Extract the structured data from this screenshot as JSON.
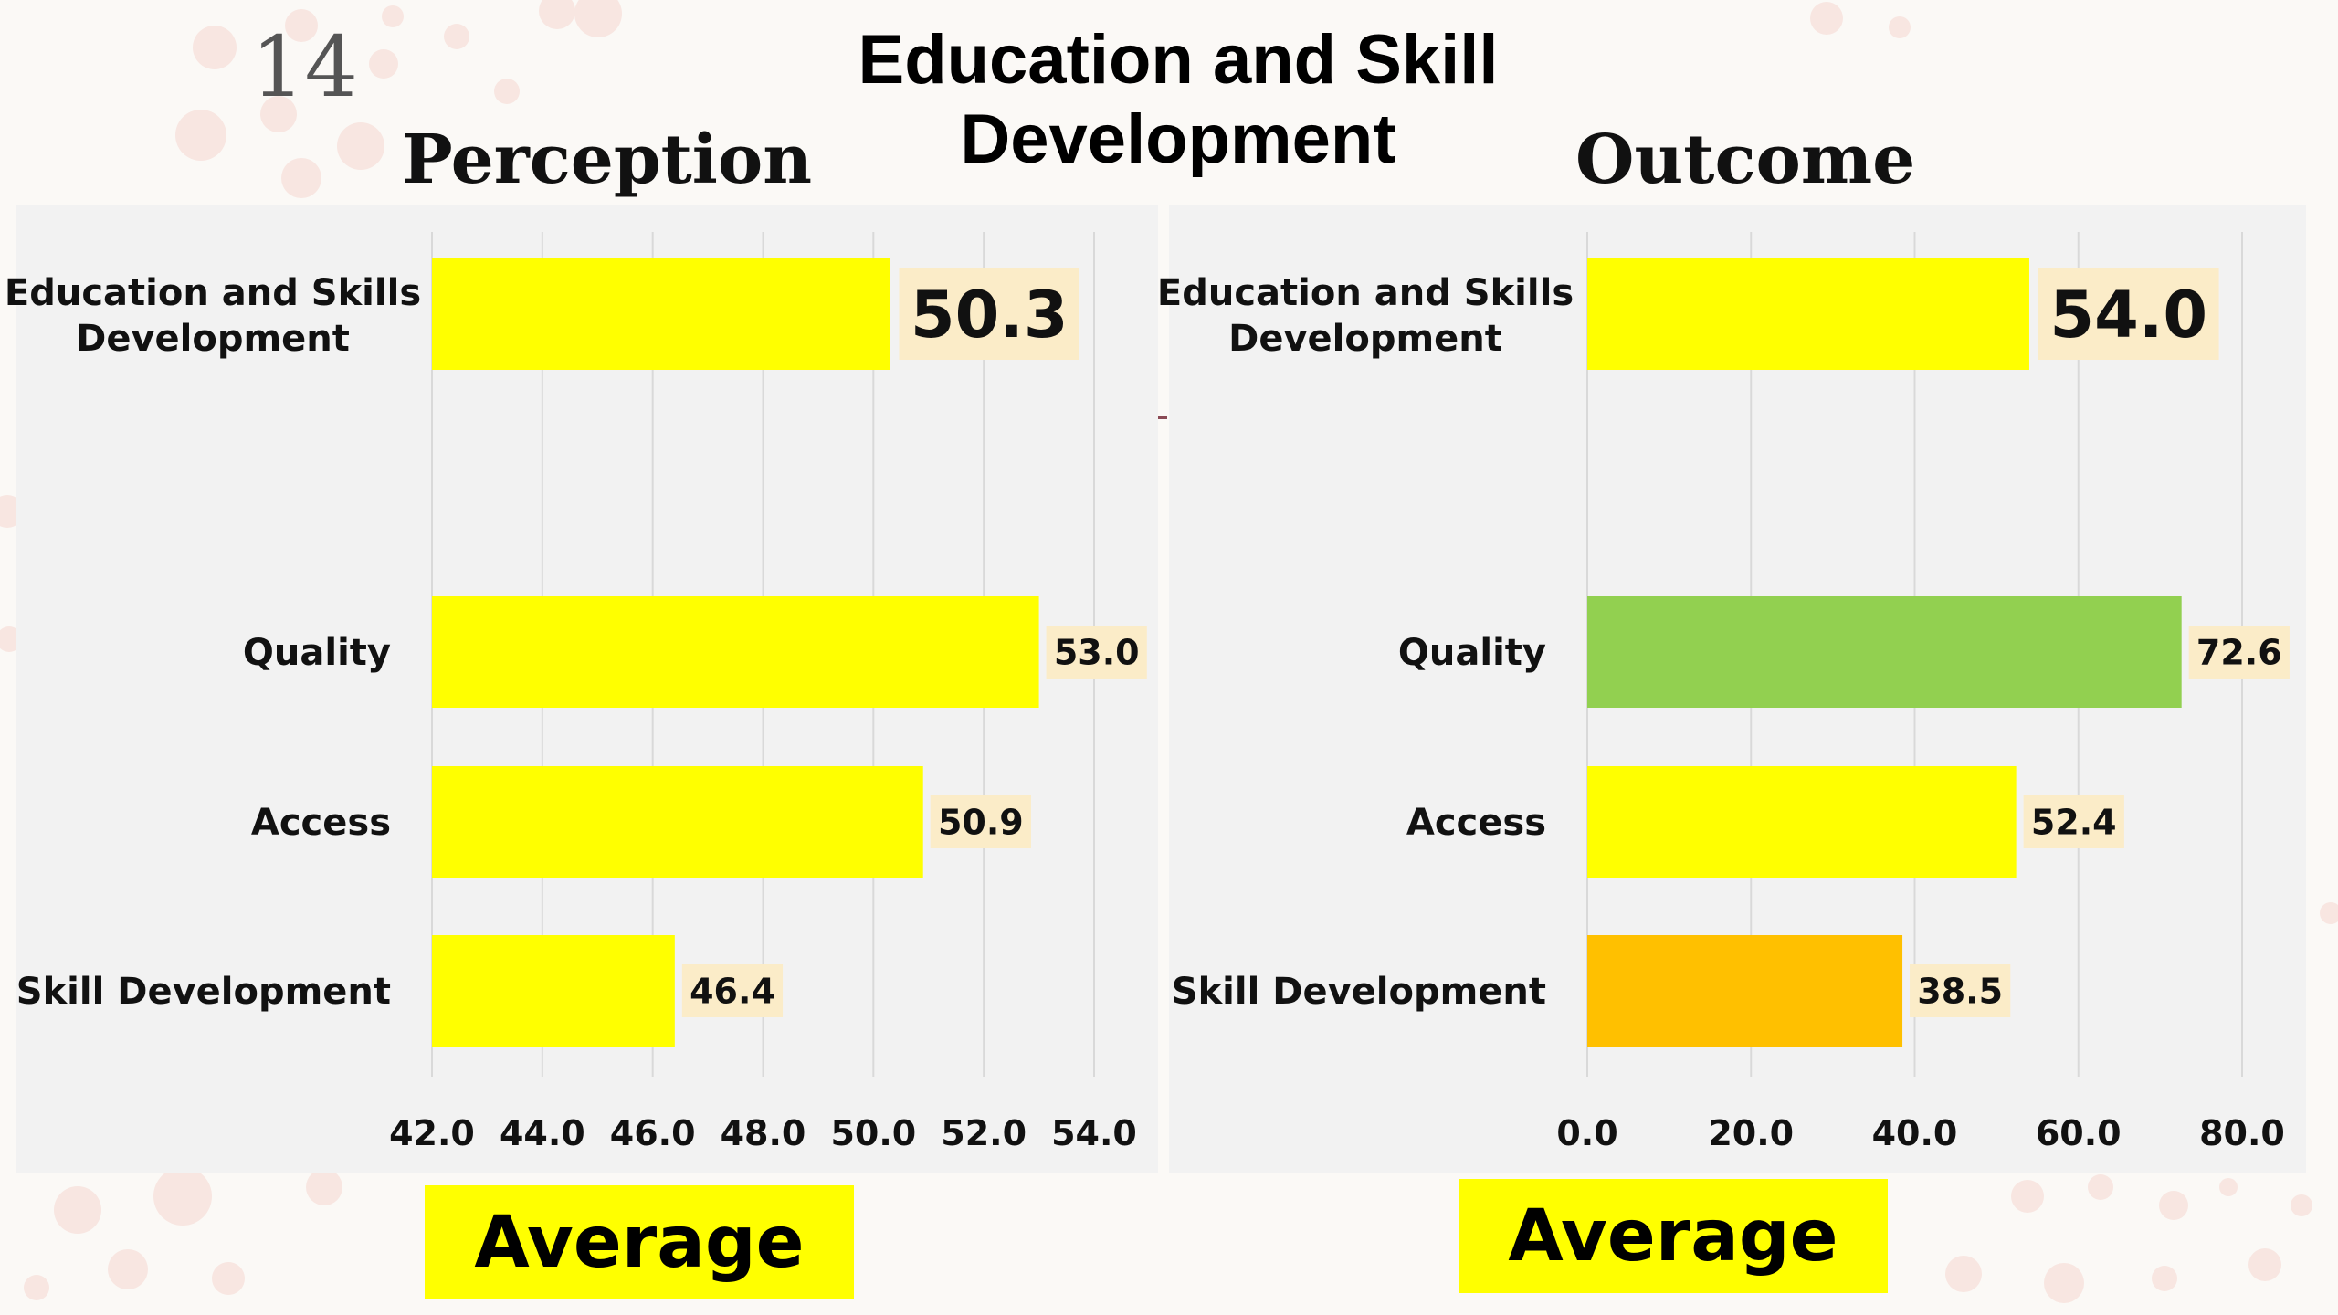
{
  "slide": {
    "page_number": "14",
    "title": "Education and Skill Development"
  },
  "panels": {
    "left": {
      "title": "Perception",
      "footer_label": "Average"
    },
    "right": {
      "title": "Outcome",
      "footer_label": "Average"
    }
  },
  "colors": {
    "yellow": "#ffff00",
    "green": "#92d050",
    "orange": "#ffc000",
    "label_bg": "#fbecc8",
    "panel_bg": "#f2f2f2",
    "gridline": "#d9d9d9"
  },
  "chart_data": [
    {
      "type": "bar",
      "orientation": "horizontal",
      "title": "Perception",
      "categories": [
        "Education and Skills Development",
        "Quality",
        "Access",
        "Skill Development"
      ],
      "values": [
        50.3,
        53.0,
        50.9,
        46.4
      ],
      "value_labels": [
        "50.3",
        "53.0",
        "50.9",
        "46.4"
      ],
      "bar_colors": [
        "#ffff00",
        "#ffff00",
        "#ffff00",
        "#ffff00"
      ],
      "xlim": [
        42.0,
        54.0
      ],
      "xticks": [
        "42.0",
        "44.0",
        "46.0",
        "48.0",
        "50.0",
        "52.0",
        "54.0"
      ],
      "grid": "vertical",
      "legend": "none"
    },
    {
      "type": "bar",
      "orientation": "horizontal",
      "title": "Outcome",
      "categories": [
        "Education and Skills Development",
        "Quality",
        "Access",
        "Skill Development"
      ],
      "values": [
        54.0,
        72.6,
        52.4,
        38.5
      ],
      "value_labels": [
        "54.0",
        "72.6",
        "52.4",
        "38.5"
      ],
      "bar_colors": [
        "#ffff00",
        "#92d050",
        "#ffff00",
        "#ffc000"
      ],
      "xlim": [
        0.0,
        80.0
      ],
      "xticks": [
        "0.0",
        "20.0",
        "40.0",
        "60.0",
        "80.0"
      ],
      "grid": "vertical",
      "legend": "none"
    }
  ]
}
